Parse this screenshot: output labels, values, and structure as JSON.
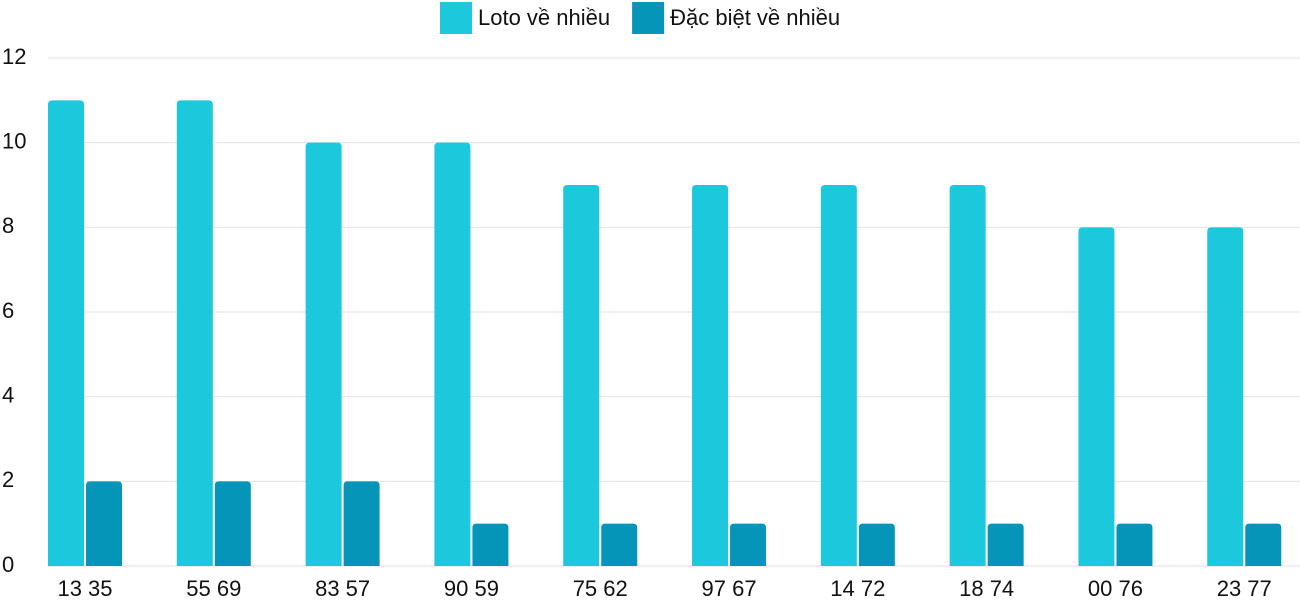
{
  "chart_data": {
    "type": "bar",
    "categories": [
      "13 35",
      "55 69",
      "83 57",
      "90 59",
      "75 62",
      "97 67",
      "14 72",
      "18 74",
      "00 76",
      "23 77"
    ],
    "series": [
      {
        "name": "Loto về nhiều",
        "color": "#1bc8dc",
        "values": [
          11,
          11,
          10,
          10,
          9,
          9,
          9,
          9,
          8,
          8
        ]
      },
      {
        "name": "Đặc biệt về nhiều",
        "color": "#0595b8",
        "values": [
          2,
          2,
          2,
          1,
          1,
          1,
          1,
          1,
          1,
          1
        ]
      }
    ],
    "ylim": [
      0,
      12
    ],
    "yticks": [
      0,
      2,
      4,
      6,
      8,
      10,
      12
    ],
    "grid": true,
    "legend": "top"
  }
}
